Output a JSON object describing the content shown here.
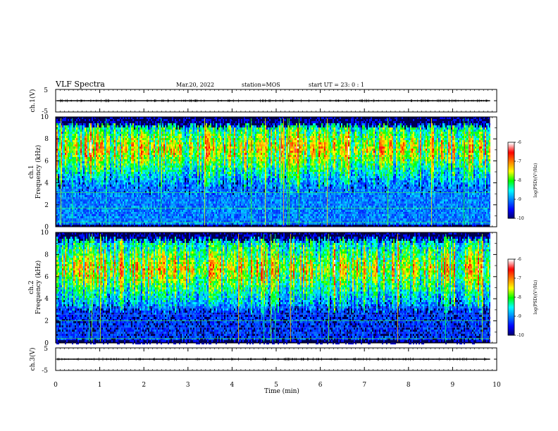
{
  "header": {
    "title": "VLF Spectra",
    "date": "Mar.20, 2022",
    "station": "station=MOS",
    "start_ut": "start UT =  23: 0  : 1"
  },
  "chart_data": [
    {
      "type": "line",
      "name": "ch1-waveform-panel",
      "ylabel": "ch.1(V)",
      "ylim": [
        -5,
        5
      ],
      "y_ticks": [
        "5",
        "-5"
      ],
      "trace_level": 0
    },
    {
      "type": "heatmap",
      "name": "ch1-spectrogram",
      "ylabel_line1": "ch.1",
      "ylabel_line2": "Frequency (kHz)",
      "ylim": [
        0,
        10
      ],
      "y_ticks": [
        "0",
        "2",
        "4",
        "6",
        "8",
        "10"
      ],
      "emission_band_khz": [
        4.2,
        9.6
      ],
      "emission_center_khz": 7.2,
      "colorbar": {
        "label": "log(PSD)(V²/Hz)",
        "ticks": [
          "-6",
          "-7",
          "-8",
          "-9",
          "-10"
        ],
        "range": [
          -10,
          -6
        ]
      }
    },
    {
      "type": "heatmap",
      "name": "ch2-spectrogram",
      "ylabel_line1": "ch.2",
      "ylabel_line2": "Frequency (kHz)",
      "ylim": [
        0,
        10
      ],
      "y_ticks": [
        "0",
        "2",
        "4",
        "6",
        "8",
        "10"
      ],
      "emission_band_khz": [
        3.6,
        9.7
      ],
      "emission_center_khz": 6.8,
      "colorbar": {
        "label": "log(PSD)(V²/Hz)",
        "ticks": [
          "-6",
          "-7",
          "-8",
          "-9",
          "-10"
        ],
        "range": [
          -10,
          -6
        ]
      }
    },
    {
      "type": "line",
      "name": "ch3-waveform-panel",
      "ylabel": "ch.3(V)",
      "ylim": [
        -5,
        5
      ],
      "y_ticks": [
        "5",
        "-5"
      ],
      "trace_level": 0
    }
  ],
  "x_axis": {
    "label": "Time (min)",
    "xlim": [
      0,
      10
    ],
    "ticks": [
      "0",
      "1",
      "2",
      "3",
      "4",
      "5",
      "6",
      "7",
      "8",
      "9",
      "10"
    ],
    "data_end_min": 9.85
  },
  "colors": {
    "colormap": [
      "#000066",
      "#0000ff",
      "#0080ff",
      "#00ffff",
      "#00ff00",
      "#ffff00",
      "#ff8000",
      "#ff0000",
      "#ffffff"
    ]
  }
}
